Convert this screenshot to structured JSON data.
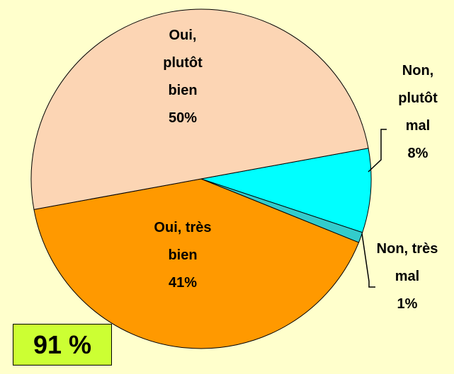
{
  "chart_data": {
    "type": "pie",
    "categories": [
      "Oui, plutôt bien",
      "Non, plutôt mal",
      "Non, très mal",
      "Oui, très bien"
    ],
    "values": [
      50,
      8,
      1,
      41
    ],
    "value_labels": [
      "50%",
      "8%",
      "1%",
      "41%"
    ],
    "colors": [
      "#fcd5b4",
      "#00ffff",
      "#33cccc",
      "#ff9900"
    ],
    "annotation": "91 %"
  }
}
